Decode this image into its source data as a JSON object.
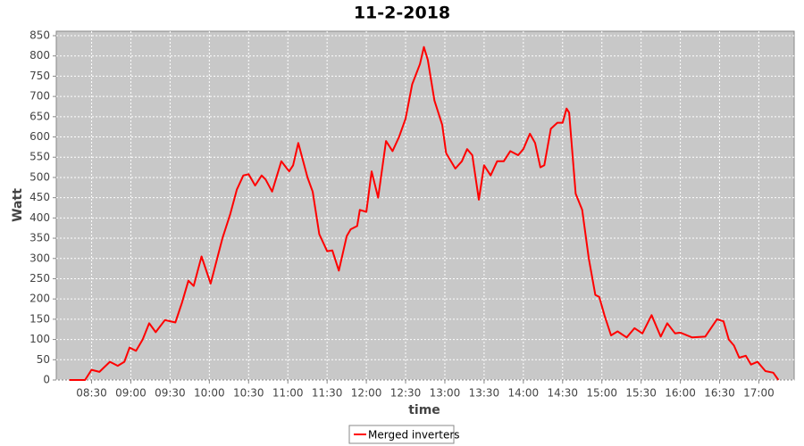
{
  "chart_data": {
    "type": "line",
    "title": "11-2-2018",
    "x_label": "time",
    "y_label": "Watt",
    "x": [
      "08:13",
      "08:21",
      "08:25",
      "08:30",
      "08:36",
      "08:44",
      "08:50",
      "08:55",
      "08:59",
      "09:04",
      "09:09",
      "09:14",
      "09:19",
      "09:26",
      "09:34",
      "09:39",
      "09:44",
      "09:48",
      "09:54",
      "10:01",
      "10:10",
      "10:16",
      "10:21",
      "10:26",
      "10:30",
      "10:35",
      "10:40",
      "10:43",
      "10:48",
      "10:55",
      "11:01",
      "11:04",
      "11:08",
      "11:15",
      "11:19",
      "11:24",
      "11:30",
      "11:34",
      "11:39",
      "11:45",
      "11:48",
      "11:53",
      "11:55",
      "12:00",
      "12:04",
      "12:09",
      "12:15",
      "12:20",
      "12:25",
      "12:30",
      "12:35",
      "12:41",
      "12:44",
      "12:47",
      "12:52",
      "12:58",
      "13:01",
      "13:08",
      "13:13",
      "13:17",
      "13:21",
      "13:26",
      "13:30",
      "13:35",
      "13:40",
      "13:45",
      "13:50",
      "13:56",
      "14:00",
      "14:05",
      "14:09",
      "14:13",
      "14:16",
      "14:21",
      "14:26",
      "14:30",
      "14:33",
      "14:35",
      "14:40",
      "14:45",
      "14:50",
      "14:55",
      "14:58",
      "15:02",
      "15:07",
      "15:12",
      "15:19",
      "15:25",
      "15:31",
      "15:38",
      "15:45",
      "15:50",
      "15:56",
      "16:00",
      "16:09",
      "16:19",
      "16:28",
      "16:33",
      "16:37",
      "16:41",
      "16:45",
      "16:50",
      "16:54",
      "16:59",
      "17:05",
      "17:11",
      "17:15"
    ],
    "series": [
      {
        "name": "Merged inverters",
        "color": "#ff0000",
        "values": [
          0,
          0,
          0,
          25,
          20,
          45,
          35,
          45,
          80,
          72,
          100,
          140,
          118,
          148,
          142,
          190,
          245,
          232,
          305,
          238,
          350,
          410,
          470,
          505,
          508,
          480,
          505,
          495,
          465,
          540,
          515,
          530,
          585,
          500,
          465,
          360,
          318,
          320,
          270,
          355,
          372,
          380,
          420,
          415,
          515,
          450,
          590,
          565,
          600,
          645,
          730,
          780,
          822,
          790,
          690,
          630,
          560,
          522,
          540,
          570,
          555,
          445,
          530,
          505,
          540,
          540,
          565,
          555,
          570,
          608,
          585,
          525,
          530,
          620,
          635,
          635,
          670,
          660,
          460,
          420,
          300,
          210,
          205,
          160,
          110,
          120,
          105,
          128,
          115,
          160,
          107,
          140,
          115,
          117,
          105,
          107,
          150,
          145,
          100,
          85,
          55,
          60,
          38,
          45,
          22,
          18,
          0
        ]
      }
    ],
    "xlim": [
      "08:03",
      "17:27"
    ],
    "ylim": [
      0,
      850
    ],
    "xticks": [
      "08:30",
      "09:00",
      "09:30",
      "10:00",
      "10:30",
      "11:00",
      "11:30",
      "12:00",
      "12:30",
      "13:00",
      "13:30",
      "14:00",
      "14:30",
      "15:00",
      "15:30",
      "16:00",
      "16:30",
      "17:00"
    ],
    "yticks": [
      0,
      50,
      100,
      150,
      200,
      250,
      300,
      350,
      400,
      450,
      500,
      550,
      600,
      650,
      700,
      750,
      800,
      850
    ],
    "grid": true,
    "legend": "bottom"
  }
}
